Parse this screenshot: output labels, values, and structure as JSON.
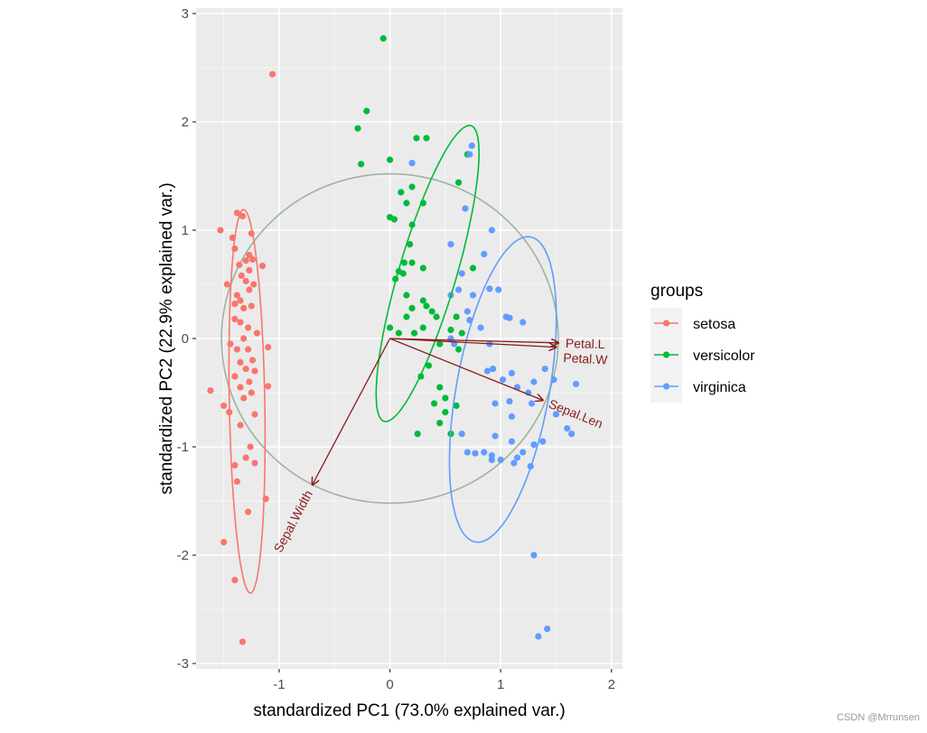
{
  "chart_data": {
    "type": "scatter",
    "subtype": "PCA biplot",
    "xlabel": "standardized PC1 (73.0% explained var.)",
    "ylabel": "standardized PC2 (22.9% explained var.)",
    "xlim": [
      -1.75,
      2.1
    ],
    "ylim": [
      -3.05,
      3.05
    ],
    "x_ticks": [
      -1,
      0,
      1,
      2
    ],
    "y_ticks": [
      -3,
      -2,
      -1,
      0,
      1,
      2,
      3
    ],
    "grid": true,
    "legend": {
      "title": "groups",
      "placement": "right"
    },
    "series": [
      {
        "name": "setosa",
        "color": "#F8766D",
        "points": [
          [
            -1.06,
            2.44
          ],
          [
            -1.53,
            1.0
          ],
          [
            -1.38,
            1.16
          ],
          [
            -1.33,
            1.13
          ],
          [
            -1.42,
            0.93
          ],
          [
            -1.4,
            0.83
          ],
          [
            -1.27,
            0.77
          ],
          [
            -1.3,
            0.72
          ],
          [
            -1.36,
            0.68
          ],
          [
            -1.24,
            0.73
          ],
          [
            -1.27,
            0.63
          ],
          [
            -1.15,
            0.67
          ],
          [
            -1.34,
            0.58
          ],
          [
            -1.3,
            0.53
          ],
          [
            -1.23,
            0.5
          ],
          [
            -1.27,
            0.45
          ],
          [
            -1.47,
            0.5
          ],
          [
            -1.38,
            0.4
          ],
          [
            -1.35,
            0.35
          ],
          [
            -1.4,
            0.32
          ],
          [
            -1.32,
            0.28
          ],
          [
            -1.25,
            0.3
          ],
          [
            -1.4,
            0.18
          ],
          [
            -1.35,
            0.15
          ],
          [
            -1.28,
            0.1
          ],
          [
            -1.2,
            0.05
          ],
          [
            -1.32,
            0.0
          ],
          [
            -1.44,
            -0.05
          ],
          [
            -1.28,
            -0.1
          ],
          [
            -1.1,
            -0.08
          ],
          [
            -1.38,
            -0.1
          ],
          [
            -1.24,
            -0.2
          ],
          [
            -1.35,
            -0.22
          ],
          [
            -1.3,
            -0.28
          ],
          [
            -1.22,
            -0.3
          ],
          [
            -1.4,
            -0.35
          ],
          [
            -1.27,
            -0.4
          ],
          [
            -1.1,
            -0.44
          ],
          [
            -1.35,
            -0.45
          ],
          [
            -1.25,
            -0.5
          ],
          [
            -1.62,
            -0.48
          ],
          [
            -1.32,
            -0.55
          ],
          [
            -1.5,
            -0.62
          ],
          [
            -1.45,
            -0.68
          ],
          [
            -1.22,
            -0.7
          ],
          [
            -1.35,
            -0.8
          ],
          [
            -1.26,
            -1.0
          ],
          [
            -1.3,
            -1.1
          ],
          [
            -1.4,
            -1.17
          ],
          [
            -1.22,
            -1.15
          ],
          [
            -1.38,
            -1.32
          ],
          [
            -1.28,
            -1.6
          ],
          [
            -1.5,
            -1.88
          ],
          [
            -1.4,
            -2.23
          ],
          [
            -1.33,
            -2.8
          ],
          [
            -1.12,
            -1.48
          ],
          [
            -1.25,
            0.97
          ]
        ]
      },
      {
        "name": "versicolor",
        "color": "#00BA38",
        "points": [
          [
            -0.06,
            2.77
          ],
          [
            -0.21,
            2.1
          ],
          [
            -0.29,
            1.94
          ],
          [
            0.24,
            1.85
          ],
          [
            0.33,
            1.85
          ],
          [
            -0.26,
            1.61
          ],
          [
            0.0,
            1.65
          ],
          [
            0.2,
            1.4
          ],
          [
            0.1,
            1.35
          ],
          [
            0.15,
            1.25
          ],
          [
            0.62,
            1.44
          ],
          [
            0.7,
            1.7
          ],
          [
            0.0,
            1.12
          ],
          [
            0.04,
            1.1
          ],
          [
            0.2,
            1.05
          ],
          [
            0.3,
            1.25
          ],
          [
            0.18,
            0.87
          ],
          [
            0.13,
            0.7
          ],
          [
            0.2,
            0.7
          ],
          [
            0.05,
            0.55
          ],
          [
            0.15,
            0.4
          ],
          [
            0.3,
            0.65
          ],
          [
            0.12,
            0.6
          ],
          [
            0.3,
            0.35
          ],
          [
            0.2,
            0.28
          ],
          [
            0.33,
            0.3
          ],
          [
            0.42,
            0.2
          ],
          [
            0.15,
            0.2
          ],
          [
            0.3,
            0.1
          ],
          [
            0.38,
            0.25
          ],
          [
            0.0,
            0.1
          ],
          [
            0.08,
            0.05
          ],
          [
            0.55,
            0.08
          ],
          [
            0.45,
            -0.05
          ],
          [
            0.62,
            -0.1
          ],
          [
            0.35,
            -0.25
          ],
          [
            0.28,
            -0.35
          ],
          [
            0.45,
            -0.45
          ],
          [
            0.5,
            -0.55
          ],
          [
            0.5,
            -0.68
          ],
          [
            0.6,
            -0.62
          ],
          [
            0.45,
            -0.78
          ],
          [
            0.25,
            -0.88
          ],
          [
            0.55,
            -0.88
          ],
          [
            0.4,
            -0.6
          ],
          [
            0.65,
            0.05
          ],
          [
            0.75,
            0.65
          ],
          [
            0.6,
            0.2
          ],
          [
            0.22,
            0.05
          ],
          [
            0.08,
            0.62
          ]
        ]
      },
      {
        "name": "virginica",
        "color": "#619CFF",
        "points": [
          [
            0.74,
            1.78
          ],
          [
            0.2,
            1.62
          ],
          [
            0.72,
            1.7
          ],
          [
            0.68,
            1.2
          ],
          [
            0.92,
            1.0
          ],
          [
            0.55,
            0.87
          ],
          [
            0.85,
            0.78
          ],
          [
            0.65,
            0.6
          ],
          [
            0.62,
            0.45
          ],
          [
            0.75,
            0.4
          ],
          [
            0.9,
            0.46
          ],
          [
            0.98,
            0.45
          ],
          [
            0.55,
            0.4
          ],
          [
            0.7,
            0.25
          ],
          [
            1.05,
            0.2
          ],
          [
            1.08,
            0.19
          ],
          [
            0.72,
            0.17
          ],
          [
            1.2,
            0.15
          ],
          [
            0.55,
            0.0
          ],
          [
            0.58,
            -0.05
          ],
          [
            0.82,
            0.1
          ],
          [
            0.9,
            -0.05
          ],
          [
            0.93,
            -0.28
          ],
          [
            0.88,
            -0.3
          ],
          [
            1.1,
            -0.32
          ],
          [
            1.02,
            -0.38
          ],
          [
            1.4,
            -0.28
          ],
          [
            1.3,
            -0.4
          ],
          [
            1.15,
            -0.45
          ],
          [
            1.25,
            -0.5
          ],
          [
            1.48,
            -0.38
          ],
          [
            0.95,
            -0.6
          ],
          [
            1.08,
            -0.58
          ],
          [
            1.1,
            -0.72
          ],
          [
            1.28,
            -0.6
          ],
          [
            1.5,
            -0.7
          ],
          [
            1.68,
            -0.42
          ],
          [
            1.6,
            -0.83
          ],
          [
            1.64,
            -0.88
          ],
          [
            0.95,
            -0.9
          ],
          [
            1.1,
            -0.95
          ],
          [
            1.3,
            -0.98
          ],
          [
            0.65,
            -0.88
          ],
          [
            0.7,
            -1.05
          ],
          [
            0.85,
            -1.05
          ],
          [
            0.92,
            -1.08
          ],
          [
            1.0,
            -1.12
          ],
          [
            1.15,
            -1.1
          ],
          [
            1.2,
            -1.05
          ],
          [
            1.38,
            -0.95
          ],
          [
            0.92,
            -1.12
          ],
          [
            1.3,
            -2.0
          ],
          [
            1.34,
            -2.75
          ],
          [
            1.42,
            -2.68
          ],
          [
            0.77,
            -1.06
          ],
          [
            1.12,
            -1.15
          ],
          [
            1.27,
            -1.18
          ]
        ]
      }
    ],
    "ellipses": [
      {
        "group": "setosa",
        "cx": -1.29,
        "cy": -0.58,
        "rx": 0.16,
        "ry": 1.77,
        "angle": -1
      },
      {
        "group": "versicolor",
        "cx": 0.34,
        "cy": 0.6,
        "rx": 0.26,
        "ry": 1.42,
        "angle": 16
      },
      {
        "group": "virginica",
        "cx": 1.02,
        "cy": -0.47,
        "rx": 0.42,
        "ry": 1.43,
        "angle": 10
      }
    ],
    "correlation_circle": {
      "radius": 1.52,
      "color": "#9BB59B"
    },
    "loadings": [
      {
        "name": "Petal.Length",
        "x": 1.52,
        "y": -0.04,
        "label": "Petal.L"
      },
      {
        "name": "Petal.Width",
        "x": 1.5,
        "y": -0.08,
        "label": "Petal.W"
      },
      {
        "name": "Sepal.Length",
        "x": 1.38,
        "y": -0.57,
        "label": "Sepal.Len"
      },
      {
        "name": "Sepal.Width",
        "x": -0.7,
        "y": -1.35,
        "label": "Sepal.Width"
      }
    ],
    "loading_color": "#8B1A1A"
  },
  "watermark": "CSDN @Mrrunsen"
}
